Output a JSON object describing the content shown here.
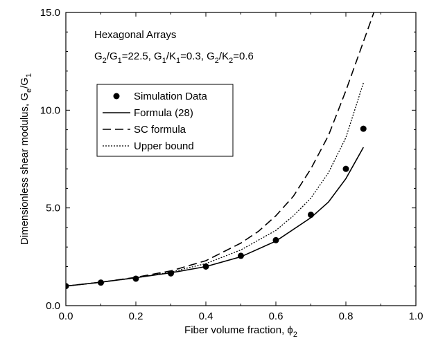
{
  "chart_data": {
    "type": "line",
    "title": "",
    "xlabel": "Fiber volume fraction, ",
    "xlabel_symbol": "ϕ",
    "xlabel_sub": "2",
    "ylabel": "Dimensionless shear modulus, G",
    "ylabel_sub1": "e",
    "ylabel_mid": "/G",
    "ylabel_sub2": "1",
    "xlim": [
      0.0,
      1.0
    ],
    "ylim": [
      0.0,
      15.0
    ],
    "x_ticks": [
      "0.0",
      "0.2",
      "0.4",
      "0.6",
      "0.8",
      "1.0"
    ],
    "y_ticks": [
      "0.0",
      "5.0",
      "10.0",
      "15.0"
    ],
    "annotations": {
      "heading": "Hexagonal Arrays",
      "params": [
        {
          "text": "G",
          "sub": "2"
        },
        {
          "text": "/G",
          "sub": "1"
        },
        {
          "text": "=22.5, G",
          "sub": "1"
        },
        {
          "text": "/K",
          "sub": "1"
        },
        {
          "text": "=0.3, G",
          "sub": "2"
        },
        {
          "text": "/K",
          "sub": "2"
        },
        {
          "text": "=0.6",
          "sub": ""
        }
      ]
    },
    "legend": {
      "position": "upper-left",
      "entries": [
        {
          "label": "Simulation Data",
          "style": "marker"
        },
        {
          "label": "Formula (28)",
          "style": "solid"
        },
        {
          "label": "SC formula",
          "style": "dashed"
        },
        {
          "label": "Upper bound",
          "style": "dotted"
        }
      ]
    },
    "series": [
      {
        "name": "Simulation Data",
        "style": "marker",
        "x": [
          0.0,
          0.1,
          0.2,
          0.3,
          0.4,
          0.5,
          0.6,
          0.7,
          0.8,
          0.85
        ],
        "y": [
          1.0,
          1.18,
          1.38,
          1.65,
          2.0,
          2.55,
          3.35,
          4.65,
          7.0,
          9.05
        ]
      },
      {
        "name": "Formula (28)",
        "style": "solid",
        "x": [
          0.0,
          0.1,
          0.2,
          0.3,
          0.4,
          0.5,
          0.6,
          0.7,
          0.75,
          0.8,
          0.85
        ],
        "y": [
          1.0,
          1.2,
          1.43,
          1.68,
          2.0,
          2.5,
          3.3,
          4.5,
          5.3,
          6.5,
          8.1
        ]
      },
      {
        "name": "SC formula",
        "style": "dashed",
        "x": [
          0.0,
          0.1,
          0.2,
          0.3,
          0.4,
          0.5,
          0.55,
          0.6,
          0.65,
          0.7,
          0.75,
          0.8,
          0.84,
          0.88
        ],
        "y": [
          1.0,
          1.2,
          1.45,
          1.78,
          2.3,
          3.2,
          3.8,
          4.6,
          5.6,
          7.0,
          8.7,
          11.0,
          13.0,
          15.0
        ]
      },
      {
        "name": "Upper bound",
        "style": "dotted",
        "x": [
          0.0,
          0.1,
          0.2,
          0.3,
          0.4,
          0.5,
          0.6,
          0.65,
          0.7,
          0.75,
          0.8,
          0.85
        ],
        "y": [
          1.0,
          1.2,
          1.42,
          1.72,
          2.15,
          2.85,
          3.85,
          4.6,
          5.5,
          6.8,
          8.6,
          11.4
        ]
      }
    ]
  }
}
